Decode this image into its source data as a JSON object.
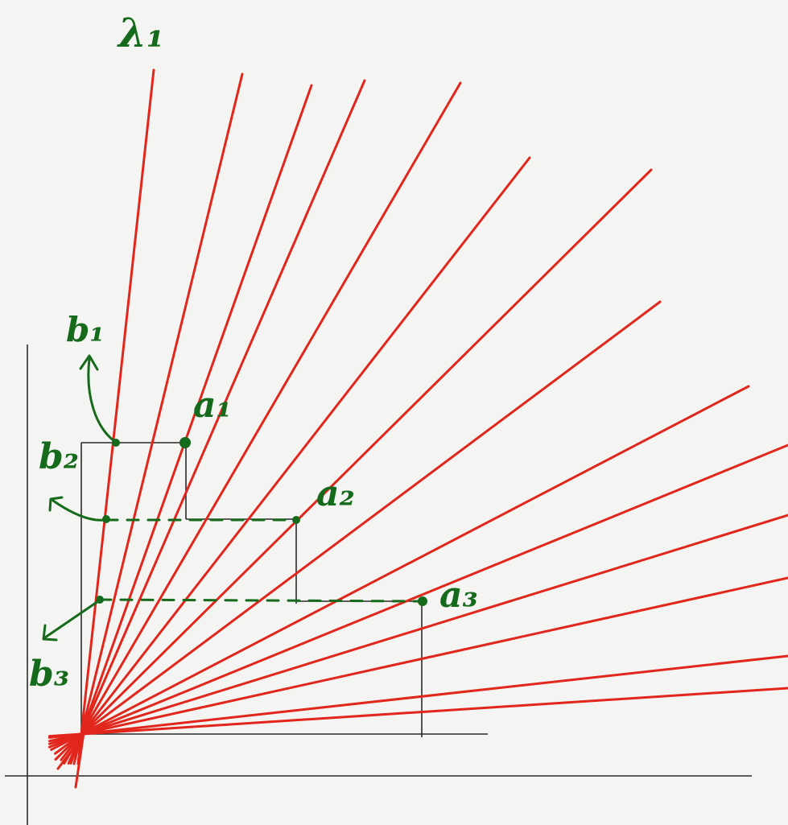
{
  "labels": {
    "lambda": "λ₁",
    "a1": "a₁",
    "a2": "a₂",
    "a3": "a₃",
    "b1": "b₁",
    "b2": "b₂",
    "b3": "b₃"
  },
  "colors": {
    "background": "#f4f4f2",
    "rays": "#e1261c",
    "axes": "#2a2a2a",
    "annotations": "#156b1b"
  }
}
